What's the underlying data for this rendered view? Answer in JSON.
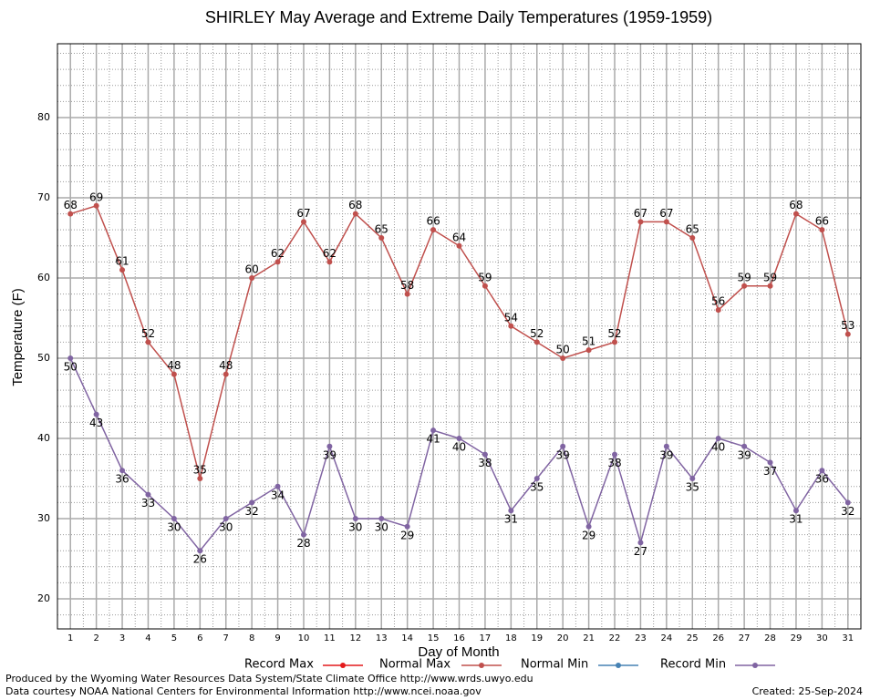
{
  "chart_data": {
    "type": "line",
    "title": "SHIRLEY May Average and Extreme Daily Temperatures (1959-1959)",
    "x_label": "Day of Month",
    "y_label": "Temperature (F)",
    "x": [
      1,
      2,
      3,
      4,
      5,
      6,
      7,
      8,
      9,
      10,
      11,
      12,
      13,
      14,
      15,
      16,
      17,
      18,
      19,
      20,
      21,
      22,
      23,
      24,
      25,
      26,
      27,
      28,
      29,
      30,
      31
    ],
    "series": [
      {
        "name": "Record Max",
        "color": "#e41a1c",
        "values": [
          null,
          null,
          null,
          null,
          null,
          null,
          null,
          null,
          null,
          null,
          null,
          null,
          null,
          null,
          null,
          null,
          null,
          null,
          null,
          null,
          null,
          null,
          null,
          null,
          null,
          null,
          null,
          null,
          null,
          null,
          null
        ]
      },
      {
        "name": "Normal Max",
        "color": "#c0504d",
        "values": [
          68,
          69,
          61,
          52,
          48,
          35,
          48,
          60,
          62,
          67,
          62,
          68,
          65,
          58,
          66,
          64,
          59,
          54,
          52,
          50,
          51,
          52,
          67,
          67,
          65,
          56,
          59,
          59,
          68,
          66,
          53
        ]
      },
      {
        "name": "Normal Min",
        "color": "#4682b4",
        "values": [
          null,
          null,
          null,
          null,
          null,
          null,
          null,
          null,
          null,
          null,
          null,
          null,
          null,
          null,
          null,
          null,
          null,
          null,
          null,
          null,
          null,
          null,
          null,
          null,
          null,
          null,
          null,
          null,
          null,
          null,
          null
        ]
      },
      {
        "name": "Record Min",
        "color": "#8064a2",
        "values": [
          50,
          43,
          36,
          33,
          30,
          26,
          30,
          32,
          34,
          28,
          39,
          30,
          30,
          29,
          41,
          40,
          38,
          31,
          35,
          39,
          29,
          38,
          27,
          39,
          35,
          40,
          39,
          37,
          31,
          36,
          32
        ]
      }
    ],
    "xlim": [
      0.5,
      31.5
    ],
    "xticks": [
      1,
      2,
      3,
      4,
      5,
      6,
      7,
      8,
      9,
      10,
      11,
      12,
      13,
      14,
      15,
      16,
      17,
      18,
      19,
      20,
      21,
      22,
      23,
      24,
      25,
      26,
      27,
      28,
      29,
      30,
      31
    ],
    "ylim": [
      16.25,
      89.2
    ],
    "yticks": [
      20,
      30,
      40,
      50,
      60,
      70,
      80
    ],
    "grid": true,
    "legend": "bottom",
    "footer_left": [
      "Produced by the Wyoming Water Resources Data System/State Climate Office http://www.wrds.uwyo.edu",
      "Data courtesy NOAA National Centers for Environmental Information http://www.ncei.noaa.gov"
    ],
    "footer_right": "Created:  25-Sep-2024"
  }
}
